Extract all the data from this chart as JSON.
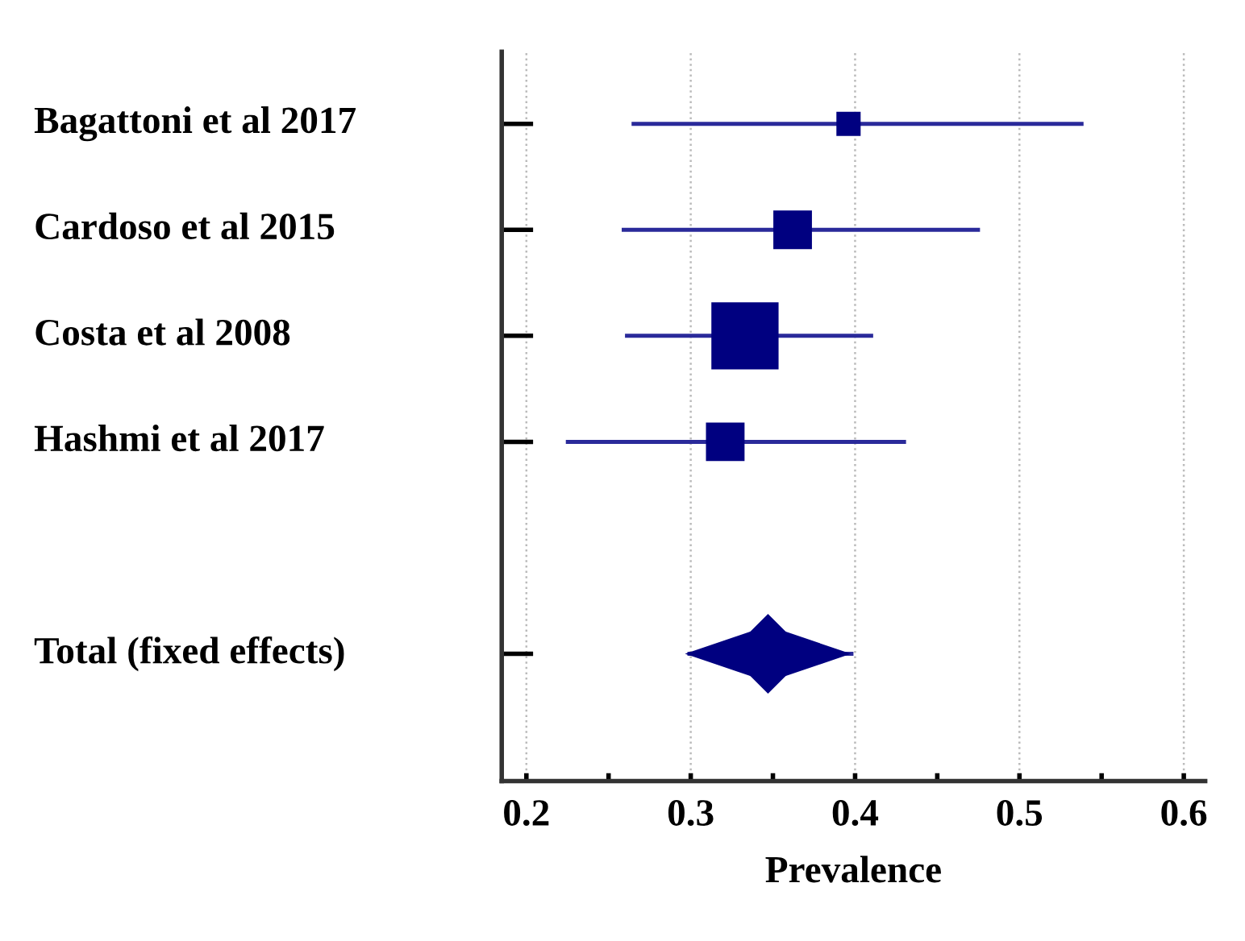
{
  "chart_data": {
    "type": "bubble",
    "orientation": "horizontal",
    "xlabel": "Prevalence",
    "categories": [
      "Bagattoni et al 2017",
      "Cardoso et al 2015",
      "Costa et al 2008",
      "Hashmi et al 2017",
      null,
      "Total (fixed effects)"
    ],
    "series": [
      {
        "color": "#000080",
        "marker": "square",
        "values": [
          0.396,
          0.362,
          0.333,
          0.321,
          null,
          null
        ],
        "sizes": [
          0.13,
          0.33,
          1,
          0.33,
          null,
          null
        ],
        "errors": [
          [
            0.264,
            0.539
          ],
          [
            0.258,
            0.476
          ],
          [
            0.26,
            0.411
          ],
          [
            0.224,
            0.431
          ],
          null,
          null
        ]
      },
      {
        "color": "#000080",
        "marker": "diamond",
        "values": [
          null,
          null,
          null,
          null,
          null,
          0.347
        ],
        "errors": [
          null,
          null,
          null,
          null,
          null,
          [
            0.298,
            0.399
          ]
        ]
      }
    ],
    "xlim": [
      0.185,
      0.613
    ],
    "xticks": [
      0.2,
      {
        "value": 0.25,
        "label": null
      },
      0.3,
      {
        "value": 0.35,
        "label": null
      },
      0.4,
      {
        "value": 0.45,
        "label": null
      },
      0.5,
      {
        "value": 0.55,
        "label": null
      },
      0.6
    ],
    "grid": "x"
  }
}
